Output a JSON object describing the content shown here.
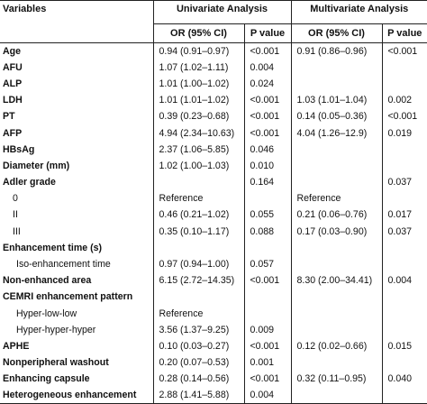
{
  "header": {
    "variables": "Variables",
    "univariate": "Univariate Analysis",
    "multivariate": "Multivariate Analysis",
    "or_ci_uni": "OR (95% CI)",
    "p_value_uni": "P value",
    "or_ci_multi": "OR (95% CI)",
    "p_value_multi": "P value"
  },
  "rows": [
    {
      "variable": "Age",
      "style": "bold",
      "uni_or": "0.94 (0.91–0.97)",
      "uni_p": "<0.001",
      "multi_or": "0.91 (0.86–0.96)",
      "multi_p": "<0.001"
    },
    {
      "variable": "AFU",
      "style": "bold",
      "uni_or": "1.07 (1.02–1.11)",
      "uni_p": "0.004",
      "multi_or": "",
      "multi_p": ""
    },
    {
      "variable": "ALP",
      "style": "bold",
      "uni_or": "1.01 (1.00–1.02)",
      "uni_p": "0.024",
      "multi_or": "",
      "multi_p": ""
    },
    {
      "variable": "LDH",
      "style": "bold",
      "uni_or": "1.01 (1.01–1.02)",
      "uni_p": "<0.001",
      "multi_or": "1.03 (1.01–1.04)",
      "multi_p": "0.002"
    },
    {
      "variable": "PT",
      "style": "bold",
      "uni_or": "0.39 (0.23–0.68)",
      "uni_p": "<0.001",
      "multi_or": "0.14 (0.05–0.36)",
      "multi_p": "<0.001"
    },
    {
      "variable": "AFP",
      "style": "bold",
      "uni_or": "4.94 (2.34–10.63)",
      "uni_p": "<0.001",
      "multi_or": "4.04 (1.26–12.9)",
      "multi_p": "0.019"
    },
    {
      "variable": "HBsAg",
      "style": "bold",
      "uni_or": "2.37 (1.06–5.85)",
      "uni_p": "0.046",
      "multi_or": "",
      "multi_p": ""
    },
    {
      "variable": "Diameter (mm)",
      "style": "bold",
      "uni_or": "1.02 (1.00–1.03)",
      "uni_p": "0.010",
      "multi_or": "",
      "multi_p": ""
    },
    {
      "variable": "Adler grade",
      "style": "bold",
      "uni_or": "",
      "uni_p": "0.164",
      "multi_or": "",
      "multi_p": "0.037"
    },
    {
      "variable": "0",
      "style": "indent1",
      "uni_or": "Reference",
      "uni_p": "",
      "multi_or": "Reference",
      "multi_p": ""
    },
    {
      "variable": "II",
      "style": "indent1",
      "uni_or": "0.46 (0.21–1.02)",
      "uni_p": "0.055",
      "multi_or": "0.21 (0.06–0.76)",
      "multi_p": "0.017"
    },
    {
      "variable": "III",
      "style": "indent1",
      "uni_or": "0.35 (0.10–1.17)",
      "uni_p": "0.088",
      "multi_or": "0.17 (0.03–0.90)",
      "multi_p": "0.037"
    },
    {
      "variable": "Enhancement time (s)",
      "style": "bold",
      "uni_or": "",
      "uni_p": "",
      "multi_or": "",
      "multi_p": ""
    },
    {
      "variable": "Iso-enhancement time",
      "style": "indent2",
      "uni_or": "0.97 (0.94–1.00)",
      "uni_p": "0.057",
      "multi_or": "",
      "multi_p": ""
    },
    {
      "variable": "Non-enhanced area",
      "style": "bold",
      "uni_or": "6.15 (2.72–14.35)",
      "uni_p": "<0.001",
      "multi_or": "8.30 (2.00–34.41)",
      "multi_p": "0.004"
    },
    {
      "variable": "CEMRI enhancement pattern",
      "style": "bold",
      "uni_or": "",
      "uni_p": "",
      "multi_or": "",
      "multi_p": ""
    },
    {
      "variable": "Hyper-low-low",
      "style": "indent2",
      "uni_or": "Reference",
      "uni_p": "",
      "multi_or": "",
      "multi_p": ""
    },
    {
      "variable": "Hyper-hyper-hyper",
      "style": "indent2",
      "uni_or": "3.56 (1.37–9.25)",
      "uni_p": "0.009",
      "multi_or": "",
      "multi_p": ""
    },
    {
      "variable": "APHE",
      "style": "bold",
      "uni_or": "0.10 (0.03–0.27)",
      "uni_p": "<0.001",
      "multi_or": "0.12 (0.02–0.66)",
      "multi_p": "0.015"
    },
    {
      "variable": "Nonperipheral washout",
      "style": "bold",
      "uni_or": "0.20 (0.07–0.53)",
      "uni_p": "0.001",
      "multi_or": "",
      "multi_p": ""
    },
    {
      "variable": "Enhancing capsule",
      "style": "bold",
      "uni_or": "0.28 (0.14–0.56)",
      "uni_p": "<0.001",
      "multi_or": "0.32 (0.11–0.95)",
      "multi_p": "0.040"
    },
    {
      "variable": "Heterogeneous enhancement",
      "style": "bold",
      "uni_or": "2.88 (1.41–5.88)",
      "uni_p": "0.004",
      "multi_or": "",
      "multi_p": ""
    }
  ]
}
